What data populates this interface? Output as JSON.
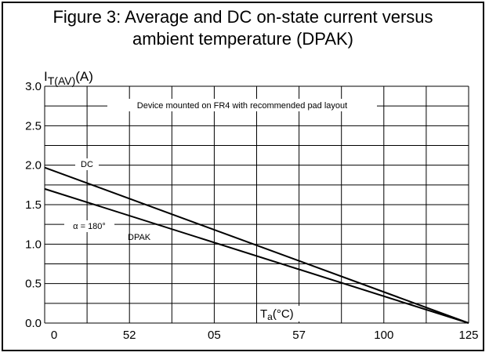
{
  "figure": {
    "title_line1": "Figure 3: Average and DC on-state current versus",
    "title_line2": "ambient temperature (DPAK)"
  },
  "chart_data": {
    "type": "line",
    "title": "Figure 3: Average and DC on-state current versus ambient temperature (DPAK)",
    "ylabel_main": "I",
    "ylabel_sub": "T(AV)",
    "ylabel_unit": "(A)",
    "xlabel_main": "T",
    "xlabel_sub": "a",
    "xlabel_unit": "(°C)",
    "xlim": [
      0,
      125
    ],
    "ylim": [
      0,
      3.0
    ],
    "x_tick_labels": [
      "0",
      "52",
      "05",
      "57",
      "100",
      "125"
    ],
    "y_tick_labels": [
      "0.0",
      "0.5",
      "1.0",
      "1.5",
      "2.0",
      "2.5",
      "3.0"
    ],
    "grid": true,
    "annotations": {
      "mount_note": "Device mounted on FR4 with recommended pad layout",
      "dc_label": "DC",
      "alpha_label": "α = 180°",
      "package_label": "DPAK"
    },
    "series": [
      {
        "name": "DC",
        "x": [
          0,
          125
        ],
        "y": [
          1.97,
          0.0
        ]
      },
      {
        "name": "α = 180°",
        "x": [
          0,
          125
        ],
        "y": [
          1.7,
          0.0
        ]
      }
    ],
    "colors": {
      "line": "#000000",
      "grid": "#000000"
    }
  }
}
